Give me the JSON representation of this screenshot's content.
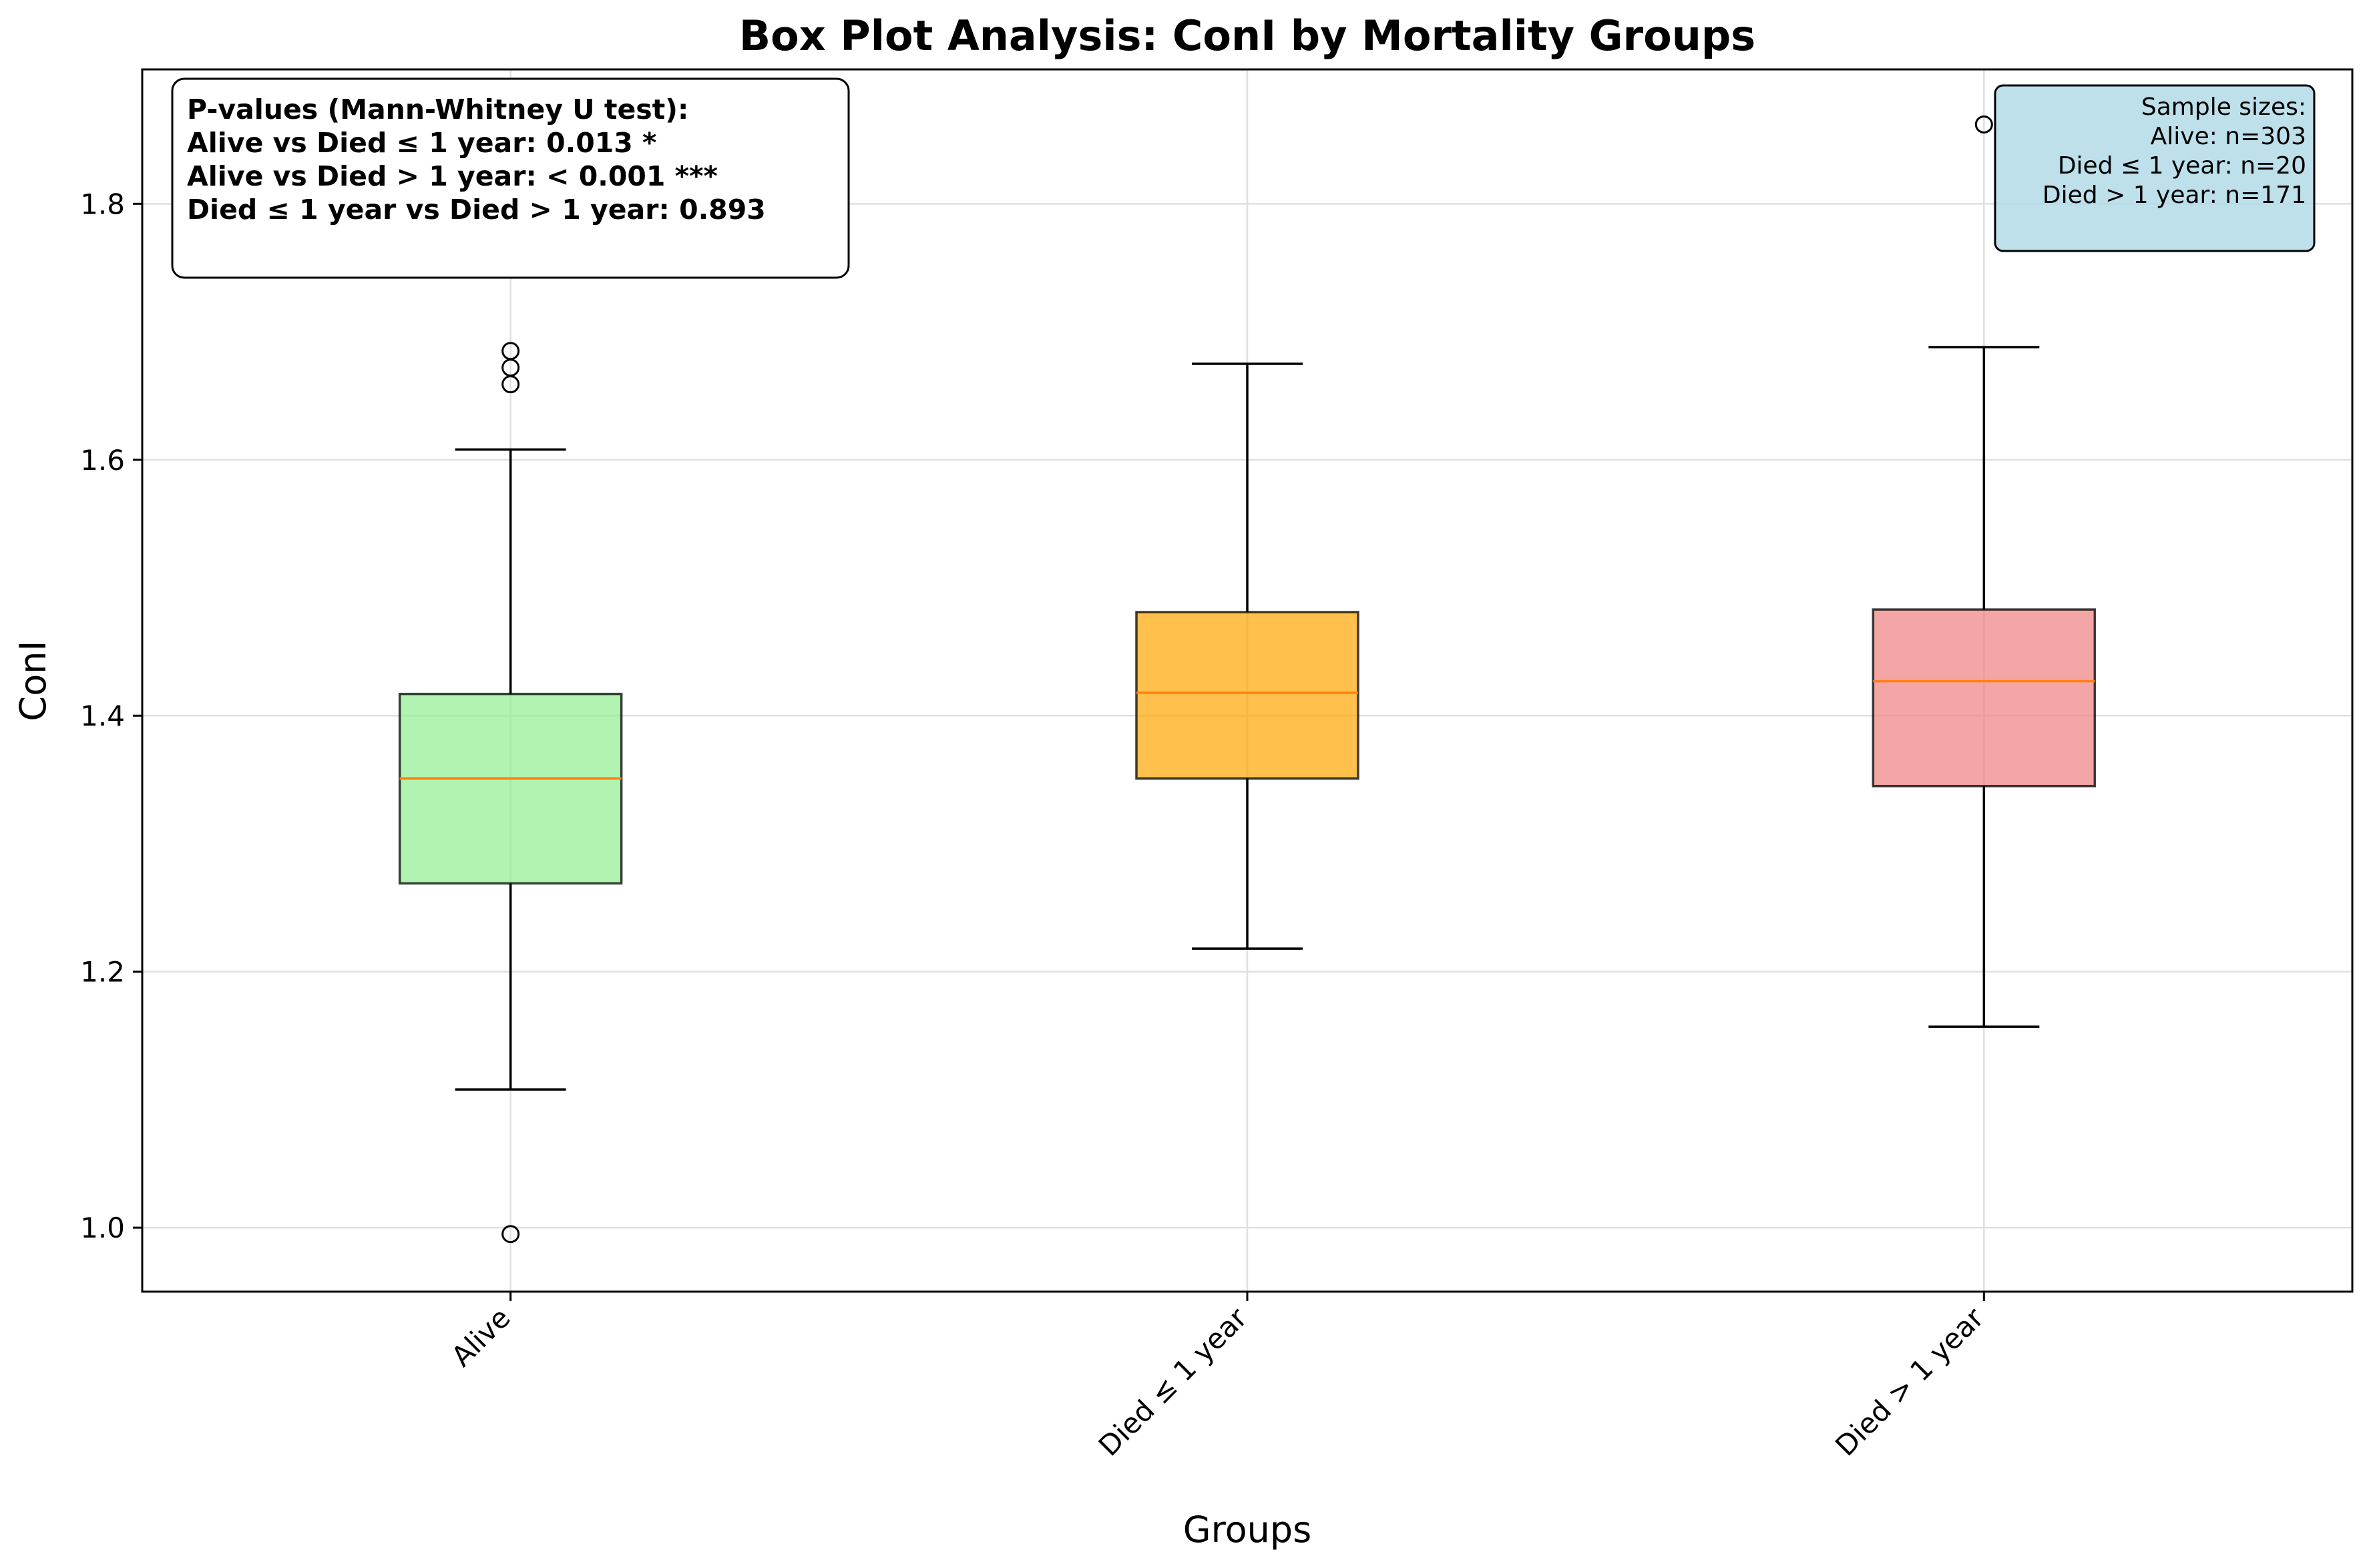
{
  "chart_data": {
    "type": "box",
    "title": "Box Plot Analysis: ConI by Mortality Groups",
    "xlabel": "Groups",
    "ylabel": "ConI",
    "ylim": [
      0.95,
      1.905
    ],
    "yticks": [
      1.0,
      1.2,
      1.4,
      1.6,
      1.8
    ],
    "ytick_labels": [
      "1.0",
      "1.2",
      "1.4",
      "1.6",
      "1.8"
    ],
    "grid": true,
    "groups": [
      {
        "label": "Alive",
        "color": "#90ee90",
        "whisker_low": 1.108,
        "q1": 1.269,
        "median": 1.351,
        "q3": 1.417,
        "whisker_high": 1.608,
        "outliers": [
          0.995,
          1.659,
          1.672,
          1.685
        ]
      },
      {
        "label": "Died ≤ 1 year",
        "color": "#ffa500",
        "whisker_low": 1.218,
        "q1": 1.351,
        "median": 1.418,
        "q3": 1.481,
        "whisker_high": 1.675,
        "outliers": []
      },
      {
        "label": "Died > 1 year",
        "color": "#f08080",
        "whisker_low": 1.157,
        "q1": 1.345,
        "median": 1.427,
        "q3": 1.483,
        "whisker_high": 1.688,
        "outliers": [
          1.862
        ]
      }
    ],
    "annotations": {
      "pvalues": [
        "P-values (Mann-Whitney U test):",
        "Alive vs Died ≤ 1 year: 0.013 *",
        "Alive vs Died > 1 year: < 0.001 ***",
        "Died ≤ 1 year vs Died > 1 year: 0.893"
      ],
      "sample_sizes": [
        "Sample sizes:",
        "Alive: n=303",
        "Died ≤ 1 year: n=20",
        "Died > 1 year: n=171"
      ]
    },
    "colors": {
      "median_line": "#ff7f0e",
      "sample_box_fill": "#add8e6"
    }
  }
}
